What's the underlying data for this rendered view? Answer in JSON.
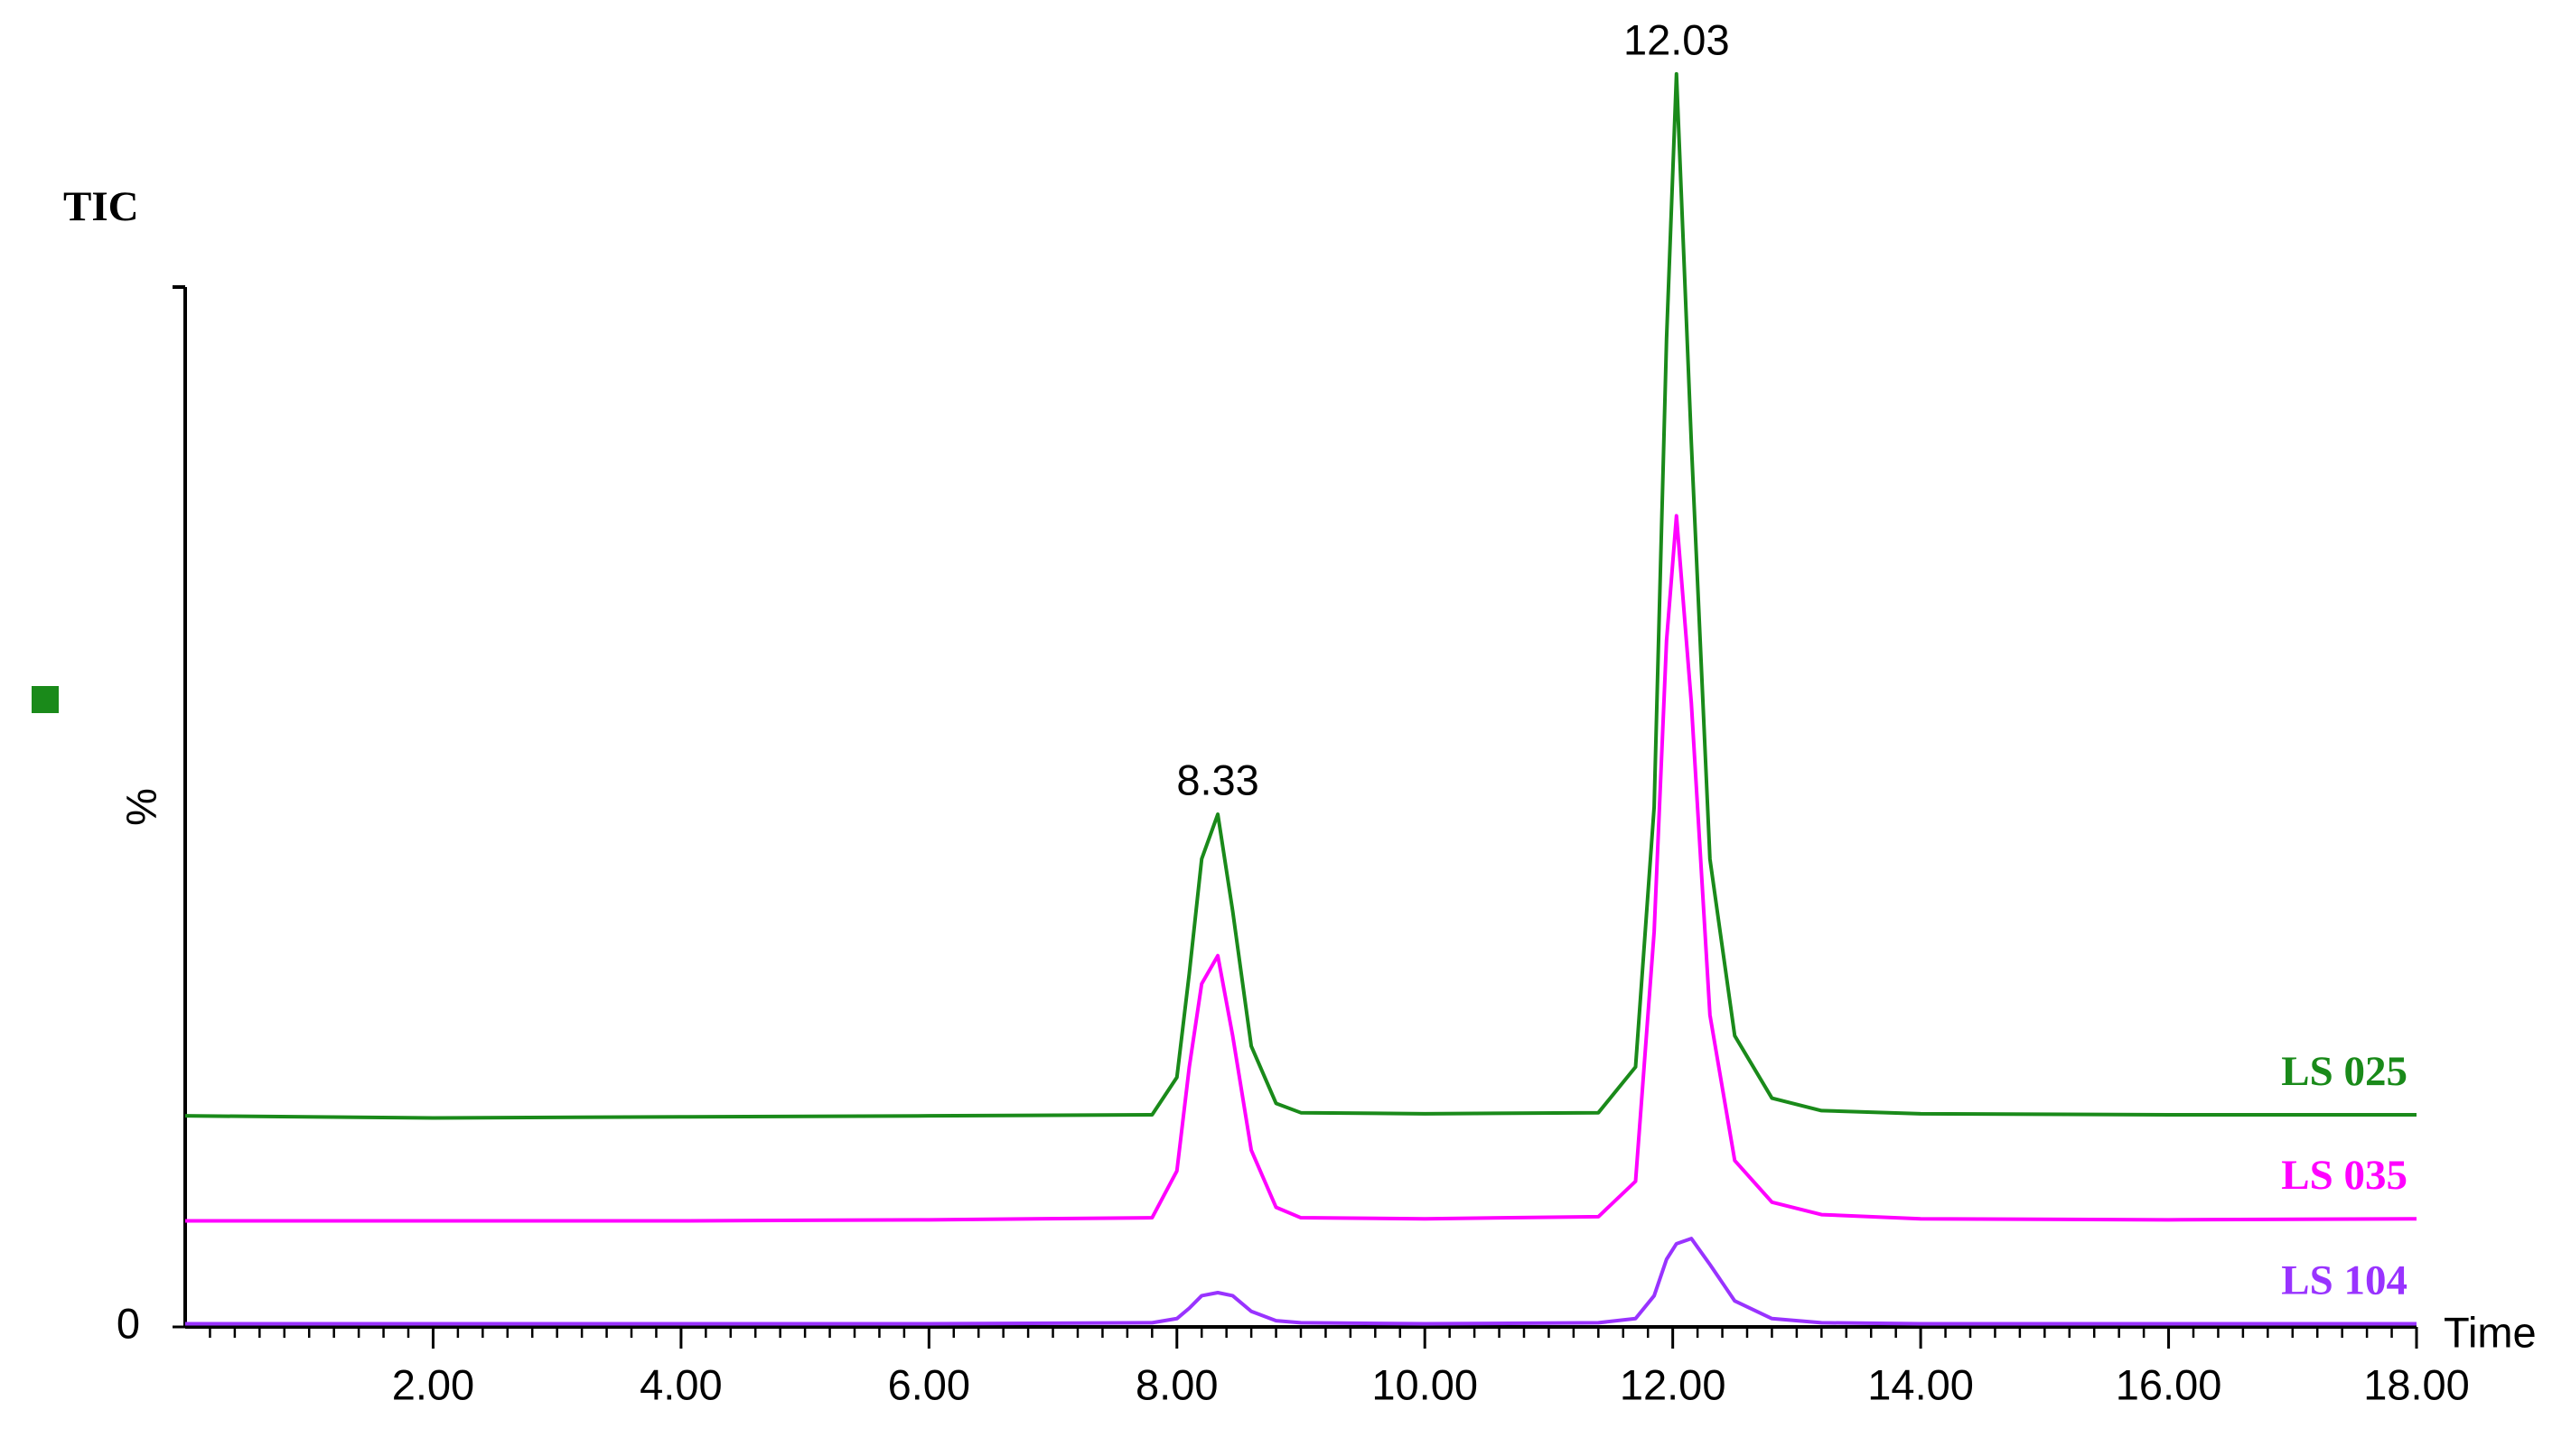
{
  "chart_data": {
    "type": "line",
    "title": "TIC",
    "y_label": "%",
    "x_label": "Time",
    "x": [
      0,
      2,
      4,
      6,
      7.8,
      8.0,
      8.1,
      8.2,
      8.33,
      8.45,
      8.6,
      8.8,
      9.0,
      10,
      11.4,
      11.7,
      11.85,
      11.95,
      12.03,
      12.15,
      12.3,
      12.5,
      12.8,
      13.2,
      14,
      16,
      18
    ],
    "series": [
      {
        "name": "LS 025",
        "color": "#1a8a1a",
        "values": [
          20.3,
          20.1,
          20.2,
          20.3,
          20.4,
          24,
          34,
          45,
          49.3,
          40,
          27,
          21.5,
          20.6,
          20.5,
          20.6,
          25,
          50,
          95,
          120.5,
          85,
          45,
          28,
          22,
          20.8,
          20.5,
          20.4,
          20.4
        ]
      },
      {
        "name": "LS 035",
        "color": "#ff00ff",
        "values": [
          10.2,
          10.2,
          10.2,
          10.3,
          10.5,
          15,
          25,
          33,
          35.7,
          28,
          17,
          11.5,
          10.5,
          10.4,
          10.6,
          14,
          38,
          66,
          78,
          60,
          30,
          16,
          12,
          10.8,
          10.4,
          10.3,
          10.4
        ]
      },
      {
        "name": "LS 104",
        "color": "#9933ff",
        "values": [
          0.3,
          0.3,
          0.3,
          0.3,
          0.4,
          0.8,
          1.8,
          3,
          3.3,
          3,
          1.5,
          0.6,
          0.4,
          0.3,
          0.4,
          0.8,
          3,
          6.5,
          8,
          8.5,
          6,
          2.5,
          0.8,
          0.4,
          0.3,
          0.3,
          0.3
        ]
      }
    ],
    "annotations": [
      {
        "text": "8.33",
        "x": 8.33,
        "y": 49.3
      },
      {
        "text": "12.03",
        "x": 12.03,
        "y": 120.5
      }
    ],
    "xlim": [
      0,
      18
    ],
    "xticks": [
      {
        "value": 2,
        "label": "2.00"
      },
      {
        "value": 4,
        "label": "4.00"
      },
      {
        "value": 6,
        "label": "6.00"
      },
      {
        "value": 8,
        "label": "8.00"
      },
      {
        "value": 10,
        "label": "10.00"
      },
      {
        "value": 12,
        "label": "12.00"
      },
      {
        "value": 14,
        "label": "14.00"
      },
      {
        "value": 16,
        "label": "16.00"
      },
      {
        "value": 18,
        "label": "18.00"
      }
    ],
    "ylim": [
      0,
      100
    ],
    "yticks": [
      0
    ],
    "grid": false
  }
}
